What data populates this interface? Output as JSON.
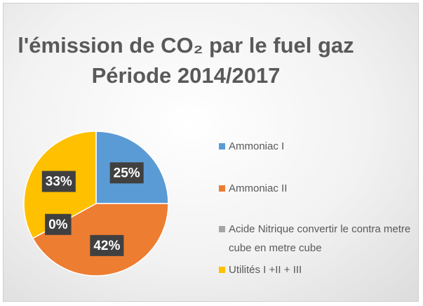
{
  "chart_data": {
    "type": "pie",
    "title": "l'émission  de CO₂  par le fuel gaz",
    "subtitle": "Période 2014/2017",
    "categories": [
      "Ammoniac I",
      "Ammoniac II",
      "Acide Nitrique convertir le contra metre cube en metre cube",
      "Utilités I +II + III"
    ],
    "values": [
      25,
      42,
      0,
      33
    ],
    "value_labels": [
      "25%",
      "42%",
      "0%",
      "33%"
    ],
    "colors": [
      "#5b9bd5",
      "#ed7d31",
      "#a5a5a5",
      "#ffc000"
    ],
    "legend": "right"
  }
}
